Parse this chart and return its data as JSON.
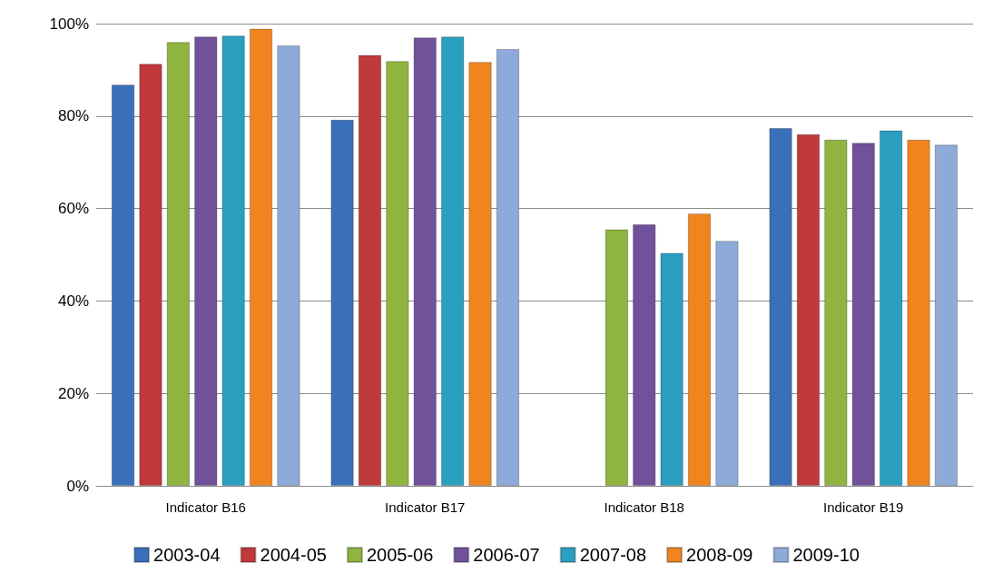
{
  "chart_data": {
    "type": "bar",
    "categories": [
      "Indicator B16",
      "Indicator B17",
      "Indicator B18",
      "Indicator B19"
    ],
    "series": [
      {
        "name": "2003-04",
        "color": "#3a6fba",
        "values": [
          86.8,
          79.2,
          null,
          77.4
        ]
      },
      {
        "name": "2004-05",
        "color": "#c0393b",
        "values": [
          91.3,
          93.2,
          null,
          76.1
        ]
      },
      {
        "name": "2005-06",
        "color": "#8fb43f",
        "values": [
          96.0,
          91.9,
          55.5,
          74.9
        ]
      },
      {
        "name": "2006-07",
        "color": "#71519a",
        "values": [
          97.2,
          97.0,
          56.6,
          74.2
        ]
      },
      {
        "name": "2007-08",
        "color": "#2a9fbf",
        "values": [
          97.4,
          97.2,
          50.4,
          76.9
        ]
      },
      {
        "name": "2008-09",
        "color": "#f0851f",
        "values": [
          98.9,
          91.7,
          58.9,
          74.9
        ]
      },
      {
        "name": "2009-10",
        "color": "#8eaad8",
        "values": [
          95.3,
          94.5,
          53.0,
          73.8
        ]
      }
    ],
    "ylim": [
      0,
      100
    ],
    "yticks": [
      {
        "value": 0,
        "label": "0%"
      },
      {
        "value": 20,
        "label": "20%"
      },
      {
        "value": 40,
        "label": "40%"
      },
      {
        "value": 60,
        "label": "60%"
      },
      {
        "value": 80,
        "label": "80%"
      },
      {
        "value": 100,
        "label": "100%"
      }
    ],
    "grid": "y",
    "legend": "bottom"
  }
}
